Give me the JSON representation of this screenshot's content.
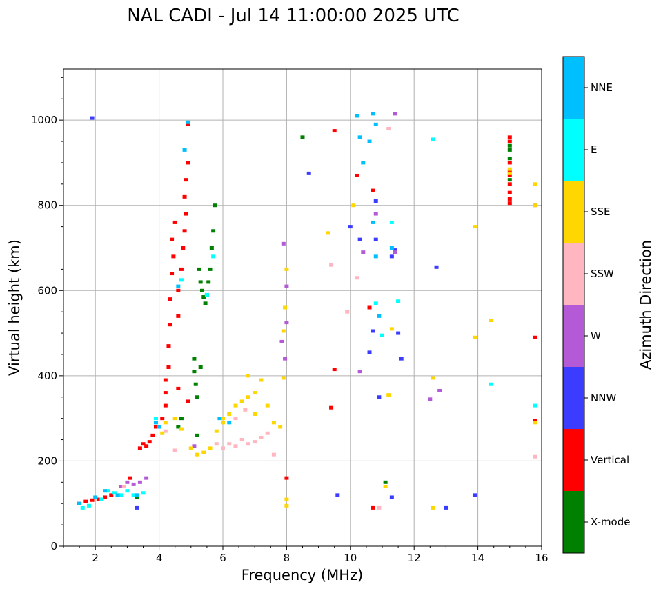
{
  "chart_data": {
    "type": "scatter",
    "title": "NAL CADI - Jul 14 11:00:00 2025 UTC",
    "xlabel": "Frequency (MHz)",
    "ylabel": "Virtual height (km)",
    "xlim": [
      1,
      16
    ],
    "ylim": [
      0,
      1120
    ],
    "xticks": [
      2,
      4,
      6,
      8,
      10,
      12,
      14,
      16
    ],
    "yticks": [
      0,
      200,
      400,
      600,
      800,
      1000
    ],
    "x_minor_step": 0.5,
    "y_minor_step": 50,
    "grid": true,
    "colorbar": {
      "label": "Azimuth Direction",
      "categories": [
        {
          "name": "X-mode",
          "color": "#008000"
        },
        {
          "name": "Vertical",
          "color": "#ff0000"
        },
        {
          "name": "NNW",
          "color": "#3c3cff"
        },
        {
          "name": "W",
          "color": "#b45ad7"
        },
        {
          "name": "SSW",
          "color": "#ffb6c1"
        },
        {
          "name": "SSE",
          "color": "#ffd700"
        },
        {
          "name": "E",
          "color": "#00ffff"
        },
        {
          "name": "NNE",
          "color": "#00bfff"
        }
      ]
    },
    "series": [
      {
        "name": "X-mode",
        "points": [
          [
            3.3,
            115
          ],
          [
            5.1,
            440
          ],
          [
            5.1,
            410
          ],
          [
            5.15,
            380
          ],
          [
            5.2,
            350
          ],
          [
            5.3,
            420
          ],
          [
            5.25,
            650
          ],
          [
            5.3,
            620
          ],
          [
            5.35,
            600
          ],
          [
            5.4,
            585
          ],
          [
            5.45,
            570
          ],
          [
            5.5,
            590
          ],
          [
            5.55,
            620
          ],
          [
            5.6,
            650
          ],
          [
            5.65,
            700
          ],
          [
            5.7,
            740
          ],
          [
            5.75,
            800
          ],
          [
            5.2,
            260
          ],
          [
            4.6,
            280
          ],
          [
            4.7,
            300
          ],
          [
            8.5,
            960
          ],
          [
            11.1,
            150
          ],
          [
            15.0,
            940
          ],
          [
            15.0,
            910
          ],
          [
            15.0,
            930
          ],
          [
            15.0,
            860
          ]
        ]
      },
      {
        "name": "Vertical",
        "points": [
          [
            1.5,
            100
          ],
          [
            1.7,
            105
          ],
          [
            1.9,
            108
          ],
          [
            2.1,
            110
          ],
          [
            2.3,
            115
          ],
          [
            2.5,
            120
          ],
          [
            3.1,
            160
          ],
          [
            3.4,
            230
          ],
          [
            3.5,
            240
          ],
          [
            3.6,
            235
          ],
          [
            3.7,
            245
          ],
          [
            3.8,
            260
          ],
          [
            3.9,
            280
          ],
          [
            4.1,
            300
          ],
          [
            4.2,
            330
          ],
          [
            4.2,
            360
          ],
          [
            4.2,
            390
          ],
          [
            4.3,
            420
          ],
          [
            4.3,
            470
          ],
          [
            4.35,
            520
          ],
          [
            4.35,
            580
          ],
          [
            4.4,
            640
          ],
          [
            4.45,
            680
          ],
          [
            4.4,
            720
          ],
          [
            4.5,
            760
          ],
          [
            4.6,
            540
          ],
          [
            4.6,
            600
          ],
          [
            4.7,
            650
          ],
          [
            4.75,
            700
          ],
          [
            4.8,
            740
          ],
          [
            4.85,
            780
          ],
          [
            4.8,
            820
          ],
          [
            4.85,
            860
          ],
          [
            4.9,
            900
          ],
          [
            4.9,
            990
          ],
          [
            4.6,
            370
          ],
          [
            4.9,
            340
          ],
          [
            9.5,
            975
          ],
          [
            9.5,
            415
          ],
          [
            9.4,
            325
          ],
          [
            10.2,
            870
          ],
          [
            10.7,
            835
          ],
          [
            10.6,
            560
          ],
          [
            10.7,
            90
          ],
          [
            8.0,
            160
          ],
          [
            15.0,
            960
          ],
          [
            15.0,
            950
          ],
          [
            15.0,
            900
          ],
          [
            15.0,
            880
          ],
          [
            15.0,
            870
          ],
          [
            15.0,
            850
          ],
          [
            15.0,
            830
          ],
          [
            15.0,
            815
          ],
          [
            15.0,
            805
          ],
          [
            15.8,
            490
          ],
          [
            15.8,
            295
          ]
        ]
      },
      {
        "name": "NNW",
        "points": [
          [
            1.9,
            1005
          ],
          [
            3.3,
            90
          ],
          [
            10.3,
            720
          ],
          [
            10.8,
            720
          ],
          [
            10.8,
            810
          ],
          [
            11.3,
            680
          ],
          [
            11.4,
            695
          ],
          [
            11.5,
            500
          ],
          [
            10.7,
            505
          ],
          [
            10.6,
            455
          ],
          [
            10.0,
            750
          ],
          [
            9.6,
            120
          ],
          [
            12.7,
            655
          ],
          [
            13.0,
            90
          ],
          [
            13.9,
            120
          ],
          [
            11.3,
            115
          ],
          [
            10.9,
            350
          ],
          [
            8.7,
            875
          ],
          [
            11.6,
            440
          ]
        ]
      },
      {
        "name": "W",
        "points": [
          [
            2.8,
            140
          ],
          [
            3.0,
            150
          ],
          [
            3.2,
            145
          ],
          [
            3.4,
            150
          ],
          [
            3.6,
            160
          ],
          [
            5.1,
            235
          ],
          [
            7.9,
            710
          ],
          [
            7.85,
            480
          ],
          [
            7.95,
            440
          ],
          [
            8.0,
            525
          ],
          [
            8.0,
            610
          ],
          [
            10.4,
            690
          ],
          [
            11.4,
            1015
          ],
          [
            11.4,
            690
          ],
          [
            12.5,
            345
          ],
          [
            12.8,
            365
          ],
          [
            15.8,
            800
          ],
          [
            10.3,
            410
          ],
          [
            10.8,
            780
          ]
        ]
      },
      {
        "name": "SSW",
        "points": [
          [
            2.9,
            140
          ],
          [
            4.2,
            270
          ],
          [
            4.5,
            225
          ],
          [
            5.8,
            240
          ],
          [
            6.0,
            230
          ],
          [
            6.2,
            240
          ],
          [
            6.4,
            235
          ],
          [
            6.6,
            250
          ],
          [
            6.8,
            240
          ],
          [
            7.0,
            245
          ],
          [
            7.2,
            255
          ],
          [
            7.4,
            265
          ],
          [
            6.4,
            300
          ],
          [
            6.7,
            320
          ],
          [
            7.6,
            215
          ],
          [
            10.2,
            630
          ],
          [
            9.9,
            550
          ],
          [
            9.4,
            660
          ],
          [
            10.9,
            90
          ],
          [
            11.2,
            980
          ],
          [
            15.8,
            210
          ]
        ]
      },
      {
        "name": "SSE",
        "points": [
          [
            4.1,
            265
          ],
          [
            4.2,
            290
          ],
          [
            4.5,
            300
          ],
          [
            4.7,
            275
          ],
          [
            5.0,
            230
          ],
          [
            5.2,
            215
          ],
          [
            5.4,
            220
          ],
          [
            5.6,
            230
          ],
          [
            5.8,
            270
          ],
          [
            6.0,
            290
          ],
          [
            6.2,
            310
          ],
          [
            6.4,
            330
          ],
          [
            6.6,
            340
          ],
          [
            6.8,
            350
          ],
          [
            7.0,
            360
          ],
          [
            7.2,
            390
          ],
          [
            6.8,
            400
          ],
          [
            6.0,
            300
          ],
          [
            7.0,
            310
          ],
          [
            7.4,
            330
          ],
          [
            7.6,
            290
          ],
          [
            7.8,
            280
          ],
          [
            8.0,
            650
          ],
          [
            7.95,
            560
          ],
          [
            7.9,
            505
          ],
          [
            7.9,
            395
          ],
          [
            8.0,
            110
          ],
          [
            8.0,
            95
          ],
          [
            9.3,
            735
          ],
          [
            10.1,
            800
          ],
          [
            11.3,
            510
          ],
          [
            11.2,
            355
          ],
          [
            11.1,
            140
          ],
          [
            12.6,
            90
          ],
          [
            12.6,
            395
          ],
          [
            13.9,
            750
          ],
          [
            13.9,
            490
          ],
          [
            14.4,
            530
          ],
          [
            15.8,
            850
          ],
          [
            15.8,
            800
          ],
          [
            15.8,
            290
          ],
          [
            15.0,
            885
          ],
          [
            15.0,
            875
          ]
        ]
      },
      {
        "name": "E",
        "points": [
          [
            1.6,
            90
          ],
          [
            1.8,
            95
          ],
          [
            2.2,
            110
          ],
          [
            2.4,
            130
          ],
          [
            2.6,
            125
          ],
          [
            2.8,
            120
          ],
          [
            3.0,
            130
          ],
          [
            3.2,
            120
          ],
          [
            3.5,
            125
          ],
          [
            3.9,
            300
          ],
          [
            4.7,
            625
          ],
          [
            5.7,
            680
          ],
          [
            5.5,
            590
          ],
          [
            10.8,
            570
          ],
          [
            11.0,
            495
          ],
          [
            11.3,
            760
          ],
          [
            11.5,
            575
          ],
          [
            12.6,
            955
          ],
          [
            14.4,
            380
          ],
          [
            15.8,
            330
          ]
        ]
      },
      {
        "name": "NNE",
        "points": [
          [
            1.5,
            100
          ],
          [
            2.0,
            115
          ],
          [
            2.3,
            130
          ],
          [
            2.7,
            120
          ],
          [
            3.3,
            120
          ],
          [
            3.9,
            290
          ],
          [
            4.0,
            280
          ],
          [
            4.6,
            610
          ],
          [
            4.8,
            930
          ],
          [
            4.9,
            995
          ],
          [
            10.2,
            1010
          ],
          [
            10.3,
            960
          ],
          [
            10.4,
            900
          ],
          [
            10.6,
            950
          ],
          [
            10.7,
            1015
          ],
          [
            10.8,
            990
          ],
          [
            10.7,
            760
          ],
          [
            10.8,
            680
          ],
          [
            10.9,
            540
          ],
          [
            11.3,
            700
          ],
          [
            5.9,
            300
          ],
          [
            6.2,
            290
          ]
        ]
      }
    ]
  }
}
